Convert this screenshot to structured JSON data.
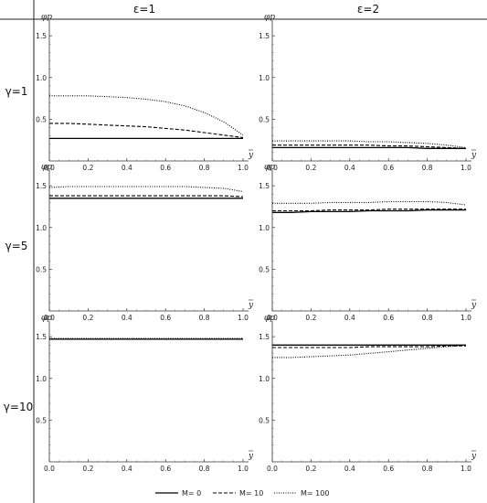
{
  "headers": {
    "columns": [
      "ε=1",
      "ε=2"
    ],
    "rows": [
      "γ=1",
      "γ=5",
      "γ=10"
    ]
  },
  "legend": {
    "items": [
      {
        "label": "M= 0",
        "style": "solid"
      },
      {
        "label": "M= 10",
        "style": "dashed"
      },
      {
        "label": "M= 100",
        "style": "dotted"
      }
    ]
  },
  "chart_data": [
    {
      "type": "line",
      "panel": "γ=1, ε=1",
      "ylabel": "φp",
      "xlabel": "y",
      "xlim": [
        0,
        1
      ],
      "ylim": [
        0,
        1.6
      ],
      "x": [
        0,
        0.1,
        0.2,
        0.3,
        0.4,
        0.5,
        0.6,
        0.7,
        0.8,
        0.9,
        1.0
      ],
      "series": [
        {
          "name": "M= 0",
          "values": [
            0.27,
            0.27,
            0.27,
            0.27,
            0.27,
            0.27,
            0.27,
            0.27,
            0.27,
            0.27,
            0.27
          ]
        },
        {
          "name": "M= 10",
          "values": [
            0.45,
            0.45,
            0.44,
            0.43,
            0.42,
            0.41,
            0.39,
            0.37,
            0.34,
            0.31,
            0.28
          ]
        },
        {
          "name": "M= 100",
          "values": [
            0.78,
            0.78,
            0.78,
            0.77,
            0.76,
            0.74,
            0.71,
            0.66,
            0.58,
            0.47,
            0.31
          ]
        }
      ]
    },
    {
      "type": "line",
      "panel": "γ=1, ε=2",
      "ylabel": "φp",
      "xlabel": "y",
      "xlim": [
        0,
        1
      ],
      "ylim": [
        0,
        1.6
      ],
      "x": [
        0,
        0.1,
        0.2,
        0.3,
        0.4,
        0.5,
        0.6,
        0.7,
        0.8,
        0.9,
        1.0
      ],
      "series": [
        {
          "name": "M= 0",
          "values": [
            0.16,
            0.16,
            0.16,
            0.16,
            0.16,
            0.16,
            0.16,
            0.16,
            0.15,
            0.15,
            0.15
          ]
        },
        {
          "name": "M= 10",
          "values": [
            0.19,
            0.19,
            0.19,
            0.19,
            0.19,
            0.19,
            0.18,
            0.18,
            0.17,
            0.16,
            0.15
          ]
        },
        {
          "name": "M= 100",
          "values": [
            0.24,
            0.24,
            0.24,
            0.24,
            0.24,
            0.23,
            0.23,
            0.22,
            0.21,
            0.19,
            0.16
          ]
        }
      ]
    },
    {
      "type": "line",
      "panel": "γ=5, ε=1",
      "ylabel": "φp",
      "xlabel": "y",
      "xlim": [
        0,
        1
      ],
      "ylim": [
        0,
        1.6
      ],
      "x": [
        0,
        0.1,
        0.2,
        0.3,
        0.4,
        0.5,
        0.6,
        0.7,
        0.8,
        0.9,
        1.0
      ],
      "series": [
        {
          "name": "M= 0",
          "values": [
            1.35,
            1.35,
            1.35,
            1.35,
            1.35,
            1.35,
            1.35,
            1.35,
            1.35,
            1.35,
            1.35
          ]
        },
        {
          "name": "M= 10",
          "values": [
            1.38,
            1.38,
            1.38,
            1.38,
            1.38,
            1.38,
            1.38,
            1.38,
            1.38,
            1.38,
            1.37
          ]
        },
        {
          "name": "M= 100",
          "values": [
            1.48,
            1.49,
            1.49,
            1.49,
            1.49,
            1.49,
            1.49,
            1.49,
            1.48,
            1.47,
            1.43
          ]
        }
      ]
    },
    {
      "type": "line",
      "panel": "γ=5, ε=2",
      "ylabel": "φp",
      "xlabel": "y",
      "xlim": [
        0,
        1
      ],
      "ylim": [
        0,
        1.6
      ],
      "x": [
        0,
        0.1,
        0.2,
        0.3,
        0.4,
        0.5,
        0.6,
        0.7,
        0.8,
        0.9,
        1.0
      ],
      "series": [
        {
          "name": "M= 0",
          "values": [
            1.18,
            1.18,
            1.19,
            1.19,
            1.19,
            1.2,
            1.2,
            1.2,
            1.21,
            1.21,
            1.21
          ]
        },
        {
          "name": "M= 10",
          "values": [
            1.2,
            1.2,
            1.2,
            1.21,
            1.21,
            1.21,
            1.22,
            1.22,
            1.22,
            1.22,
            1.22
          ]
        },
        {
          "name": "M= 100",
          "values": [
            1.29,
            1.29,
            1.29,
            1.3,
            1.3,
            1.3,
            1.31,
            1.31,
            1.31,
            1.3,
            1.27
          ]
        }
      ]
    },
    {
      "type": "line",
      "panel": "γ=10, ε=1",
      "ylabel": "φp",
      "xlabel": "y",
      "xlim": [
        0,
        1
      ],
      "ylim": [
        0,
        1.6
      ],
      "x": [
        0,
        0.1,
        0.2,
        0.3,
        0.4,
        0.5,
        0.6,
        0.7,
        0.8,
        0.9,
        1.0
      ],
      "series": [
        {
          "name": "M= 0",
          "values": [
            1.47,
            1.47,
            1.47,
            1.47,
            1.47,
            1.47,
            1.47,
            1.47,
            1.47,
            1.47,
            1.47
          ]
        },
        {
          "name": "M= 10",
          "values": [
            1.47,
            1.47,
            1.47,
            1.47,
            1.47,
            1.47,
            1.47,
            1.47,
            1.47,
            1.47,
            1.47
          ]
        },
        {
          "name": "M= 100",
          "values": [
            1.48,
            1.48,
            1.48,
            1.48,
            1.48,
            1.48,
            1.48,
            1.48,
            1.48,
            1.48,
            1.48
          ]
        }
      ]
    },
    {
      "type": "line",
      "panel": "γ=10, ε=2",
      "ylabel": "φp",
      "xlabel": "y",
      "xlim": [
        0,
        1
      ],
      "ylim": [
        0,
        1.6
      ],
      "x": [
        0,
        0.1,
        0.2,
        0.3,
        0.4,
        0.5,
        0.6,
        0.7,
        0.8,
        0.9,
        1.0
      ],
      "series": [
        {
          "name": "M= 0",
          "values": [
            1.4,
            1.4,
            1.4,
            1.4,
            1.4,
            1.4,
            1.4,
            1.4,
            1.4,
            1.4,
            1.4
          ]
        },
        {
          "name": "M= 10",
          "values": [
            1.37,
            1.37,
            1.37,
            1.37,
            1.37,
            1.38,
            1.38,
            1.38,
            1.38,
            1.39,
            1.39
          ]
        },
        {
          "name": "M= 100",
          "values": [
            1.25,
            1.25,
            1.26,
            1.27,
            1.28,
            1.3,
            1.32,
            1.34,
            1.36,
            1.38,
            1.4
          ]
        }
      ]
    }
  ]
}
